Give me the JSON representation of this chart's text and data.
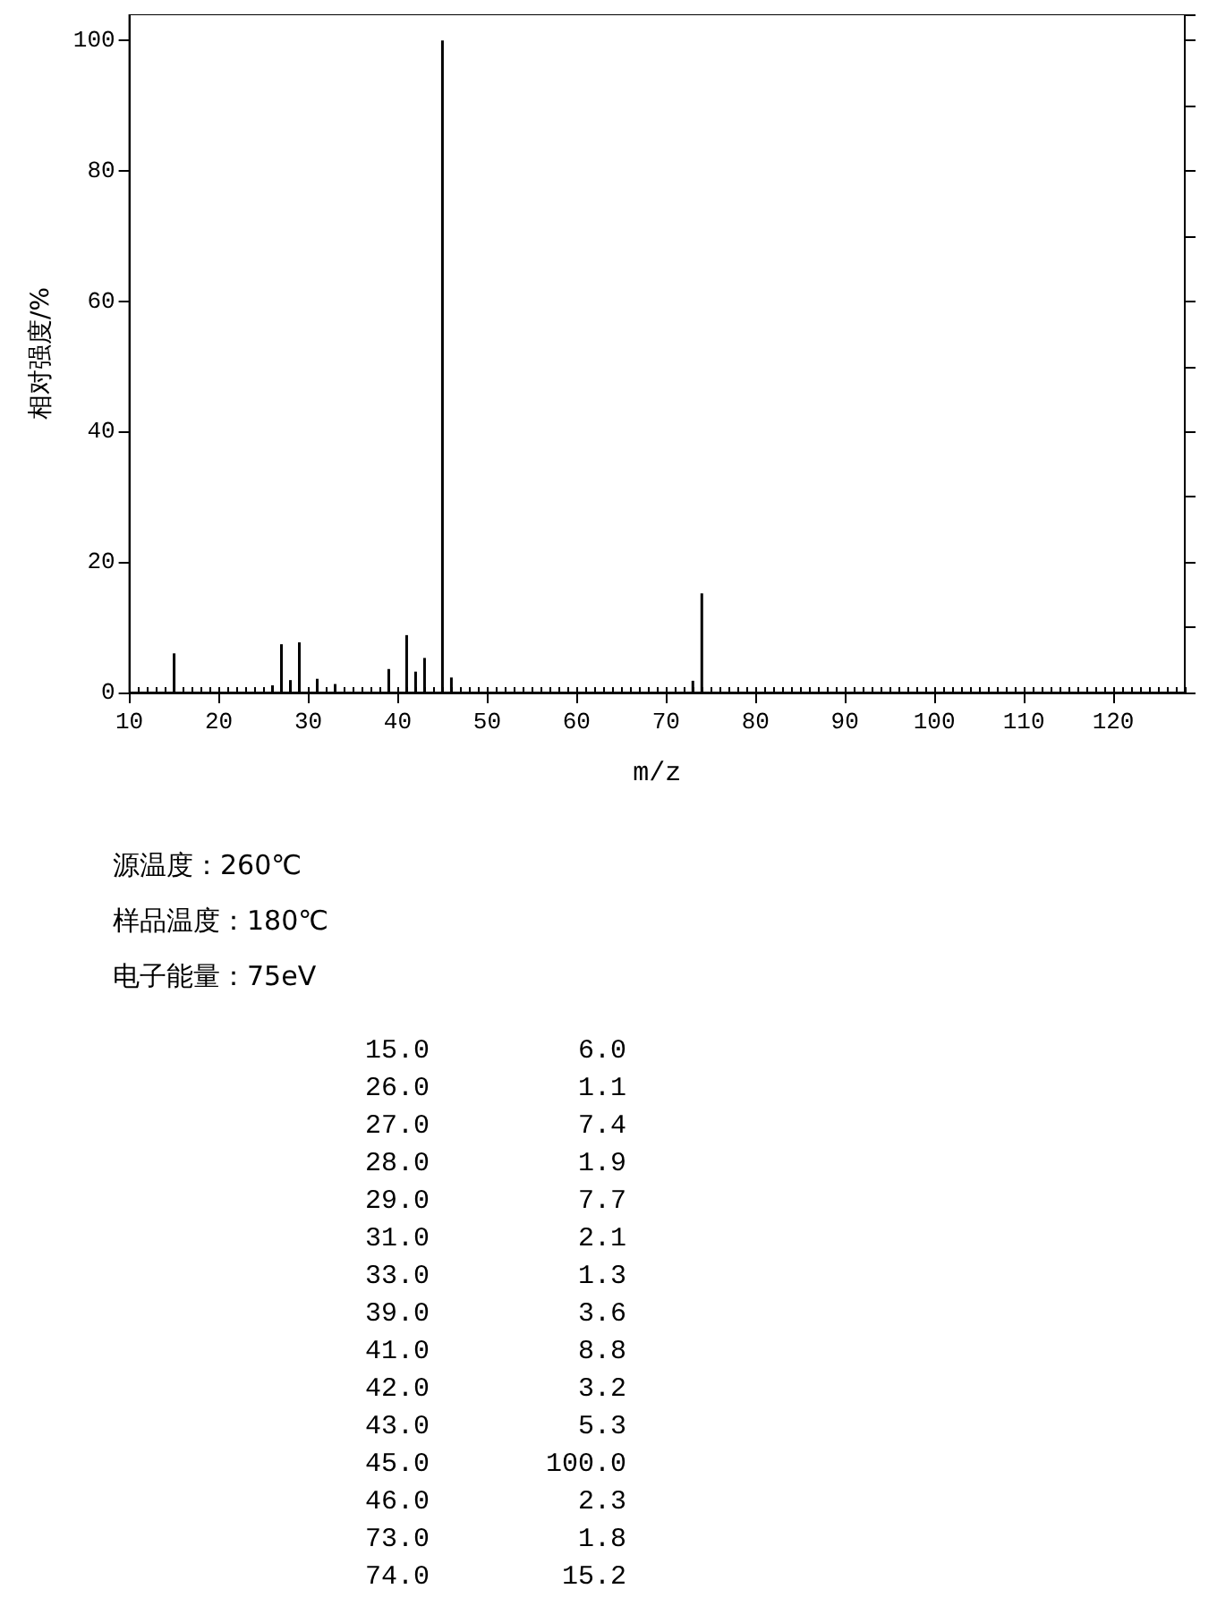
{
  "chart_data": {
    "type": "bar",
    "xlabel": "m/z",
    "ylabel": "相对强度/%",
    "x": [
      15,
      26,
      27,
      28,
      29,
      31,
      33,
      39,
      41,
      42,
      43,
      45,
      46,
      73,
      74
    ],
    "values": [
      6.0,
      1.1,
      7.4,
      1.9,
      7.7,
      2.1,
      1.3,
      3.6,
      8.8,
      3.2,
      5.3,
      100.0,
      2.3,
      1.8,
      15.2
    ],
    "color": "#000000",
    "xlim": [
      10,
      128
    ],
    "xticks": [
      10,
      20,
      30,
      40,
      50,
      60,
      70,
      80,
      90,
      100,
      110,
      120
    ],
    "ylim": [
      0,
      104
    ],
    "yticks": [
      0,
      20,
      40,
      60,
      80,
      100
    ],
    "annotations": [
      "源温度：260℃",
      "样品温度：180℃",
      "电子能量：75eV",
      "15.0",
      "6.0",
      "26.0",
      "1.1",
      "27.0",
      "7.4",
      "28.0",
      "1.9",
      "29.0",
      "7.7",
      "31.0",
      "2.1",
      "33.0",
      "1.3",
      "39.0",
      "3.6",
      "41.0",
      "8.8",
      "42.0",
      "3.2",
      "43.0",
      "5.3",
      "45.0",
      "100.0",
      "46.0",
      "2.3",
      "73.0",
      "1.8",
      "74.0",
      "15.2"
    ]
  }
}
